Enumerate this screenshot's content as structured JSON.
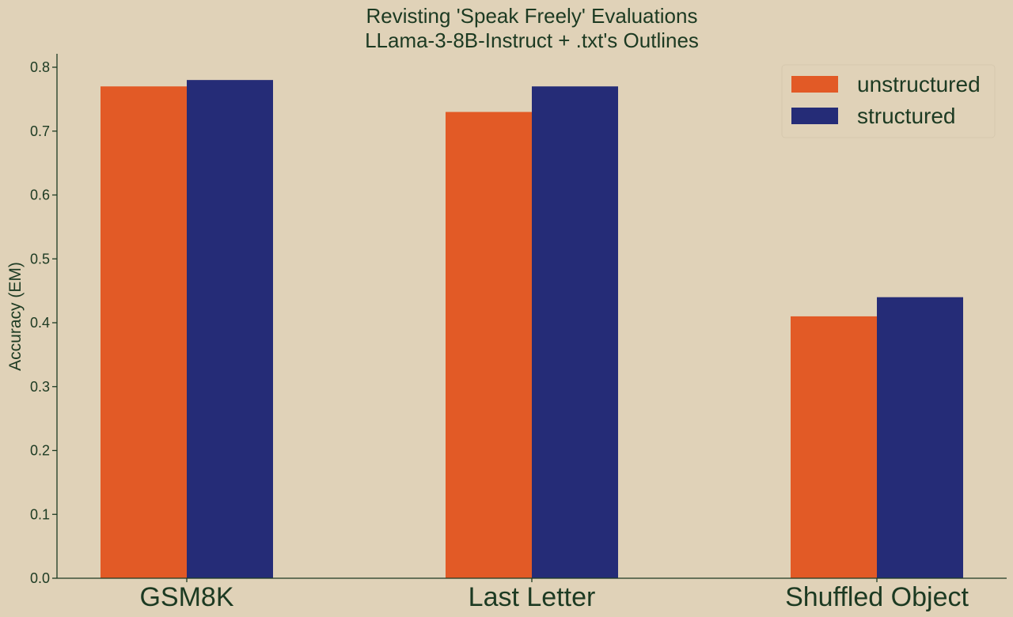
{
  "chart_data": {
    "type": "bar",
    "title": "Revisting 'Speak Freely' Evaluations",
    "subtitle": "LLama-3-8B-Instruct + .txt's Outlines",
    "xlabel": "",
    "ylabel": "Accuracy (EM)",
    "ylim": [
      0,
      0.82
    ],
    "yticks": [
      "0.0",
      "0.1",
      "0.2",
      "0.3",
      "0.4",
      "0.5",
      "0.6",
      "0.7",
      "0.8"
    ],
    "categories": [
      "GSM8K",
      "Last Letter",
      "Shuffled Object"
    ],
    "series": [
      {
        "name": "unstructured",
        "color": "#e25a26",
        "values": [
          0.77,
          0.73,
          0.41
        ]
      },
      {
        "name": "structured",
        "color": "#252c77",
        "values": [
          0.78,
          0.77,
          0.44
        ]
      }
    ],
    "legend_position": "top-right",
    "grid": false
  }
}
